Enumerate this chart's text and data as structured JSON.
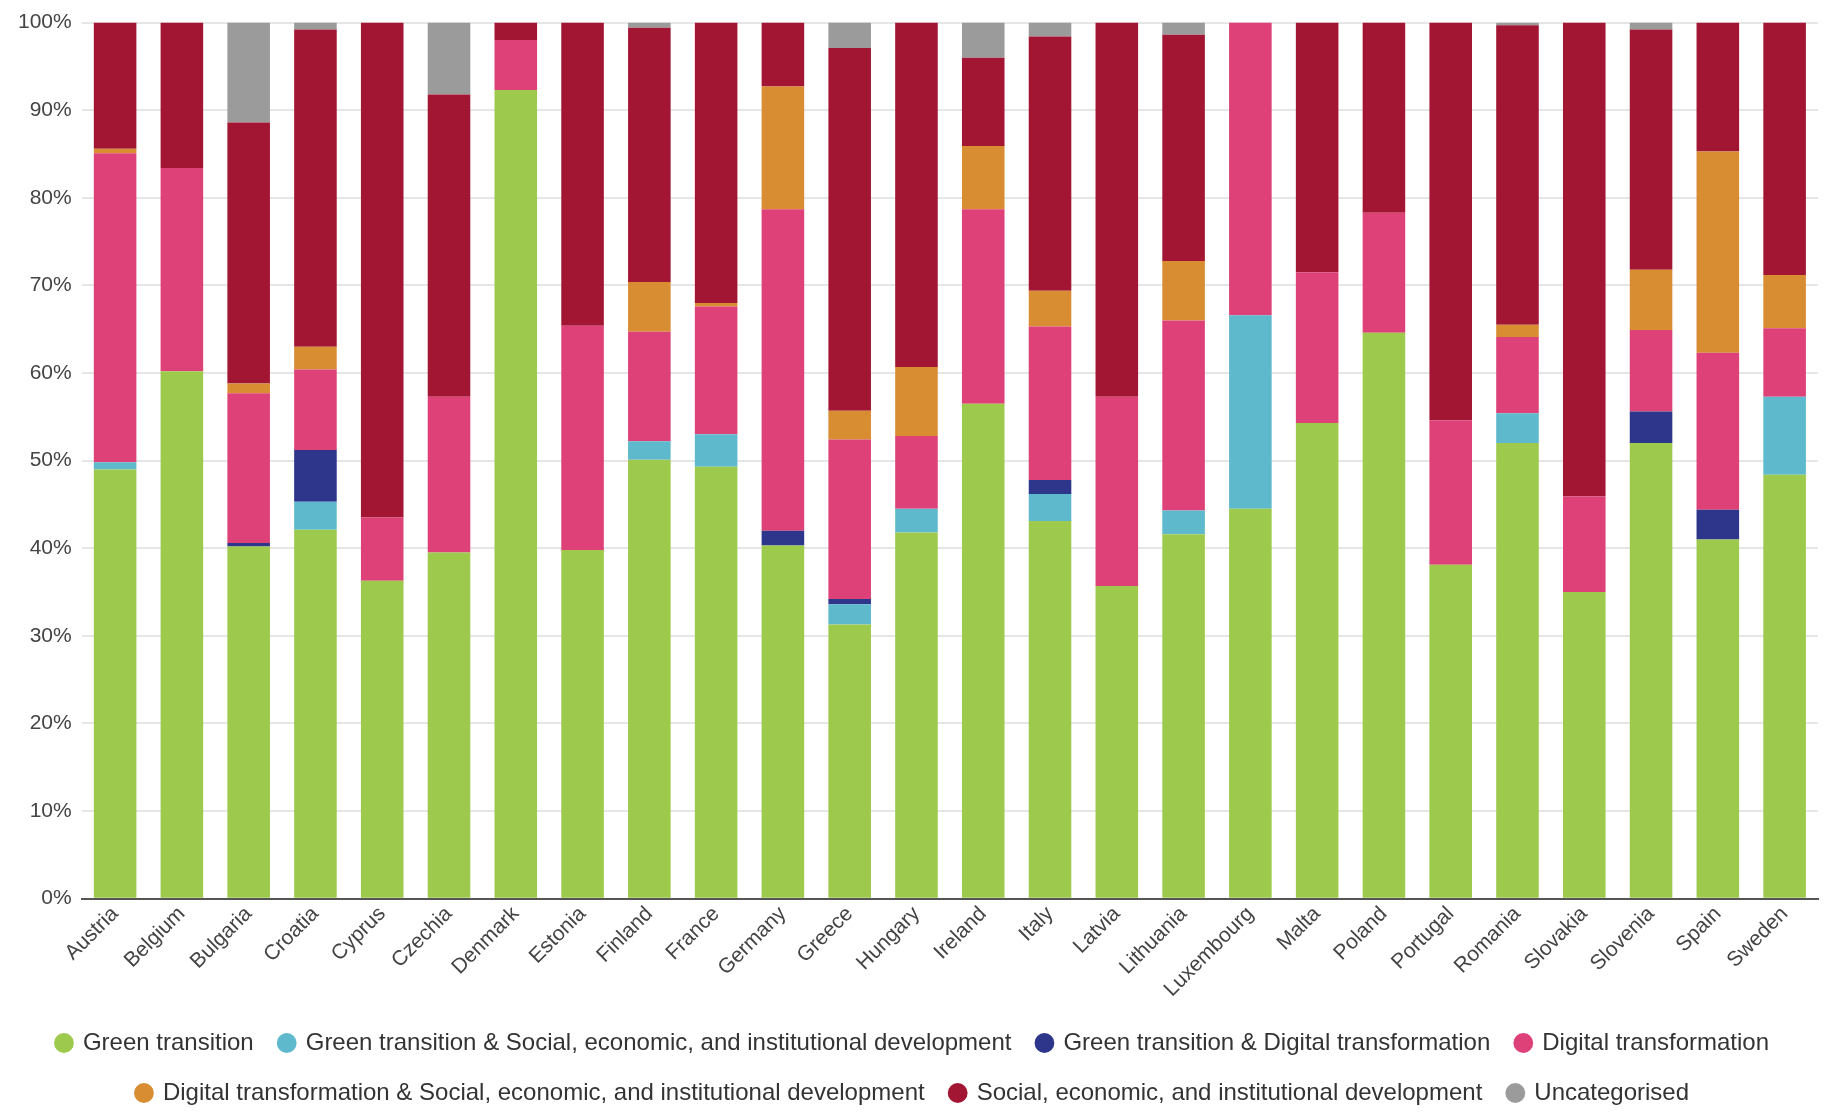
{
  "chart_data": {
    "type": "bar",
    "stacked": true,
    "grid": "y",
    "legend": "bottom",
    "categories": [
      "Austria",
      "Belgium",
      "Bulgaria",
      "Croatia",
      "Cyprus",
      "Czechia",
      "Denmark",
      "Estonia",
      "Finland",
      "France",
      "Germany",
      "Greece",
      "Hungary",
      "Ireland",
      "Italy",
      "Latvia",
      "Lithuania",
      "Luxembourg",
      "Malta",
      "Poland",
      "Portugal",
      "Romania",
      "Slovakia",
      "Slovenia",
      "Spain",
      "Sweden"
    ],
    "ylim": [
      0,
      100
    ],
    "yticks": [
      {
        "value": 0,
        "label": "0%"
      },
      {
        "value": 10,
        "label": "10%"
      },
      {
        "value": 20,
        "label": "20%"
      },
      {
        "value": 30,
        "label": "30%"
      },
      {
        "value": 40,
        "label": "40%"
      },
      {
        "value": 50,
        "label": "50%"
      },
      {
        "value": 60,
        "label": "60%"
      },
      {
        "value": 70,
        "label": "70%"
      },
      {
        "value": 80,
        "label": "80%"
      },
      {
        "value": 90,
        "label": "90%"
      },
      {
        "value": 100,
        "label": "100%"
      }
    ],
    "series": [
      {
        "name": "Green transition",
        "color": "#9dc94c",
        "values": [
          49,
          60.2,
          40.2,
          42.1,
          36.3,
          39.5,
          92.3,
          39.8,
          50.1,
          49.3,
          40.3,
          31.3,
          41.8,
          56.5,
          43.1,
          35.7,
          41.6,
          44.5,
          54.3,
          64.6,
          38.1,
          52,
          35,
          52,
          41,
          48.4
        ]
      },
      {
        "name": "Green transition & Social, economic, and institutional development",
        "color": "#5fb9cd",
        "values": [
          0.8,
          0,
          0,
          3.2,
          0,
          0,
          0,
          0,
          2.1,
          3.7,
          0,
          2.3,
          2.7,
          0,
          3.1,
          0,
          2.7,
          22.1,
          0,
          0,
          0,
          3.4,
          0,
          0,
          0,
          8.9
        ]
      },
      {
        "name": "Green transition & Digital transformation",
        "color": "#2e368c",
        "values": [
          0,
          0,
          0.4,
          5.9,
          0,
          0,
          0,
          0,
          0,
          0,
          1.7,
          0.6,
          0,
          0,
          1.6,
          0,
          0,
          0,
          0,
          0,
          0,
          0,
          0,
          3.6,
          3.4,
          0
        ]
      },
      {
        "name": "Digital transformation",
        "color": "#de4177",
        "values": [
          35.3,
          23.2,
          17.1,
          9.2,
          7.2,
          17.8,
          5.7,
          25.6,
          12.5,
          14.6,
          36.7,
          18.2,
          8.3,
          22.2,
          17.5,
          21.6,
          21.7,
          33.4,
          17.2,
          13.7,
          16.5,
          8.7,
          10.9,
          9.3,
          17.9,
          7.8
        ]
      },
      {
        "name": "Digital transformation & Social, economic, and institutional development",
        "color": "#d88d33",
        "values": [
          0.5,
          0,
          1.1,
          2.6,
          0,
          0,
          0,
          0,
          5.7,
          0.4,
          14,
          3.3,
          7.9,
          7.2,
          4.1,
          0,
          6.8,
          0,
          0,
          0,
          0,
          1.4,
          0,
          6.9,
          23,
          6.1
        ]
      },
      {
        "name": "Social, economic, and institutional development",
        "color": "#a21634",
        "values": [
          14.4,
          16.6,
          29.8,
          36.2,
          56.5,
          34.5,
          2,
          34.6,
          29,
          32,
          7.3,
          41.4,
          39.3,
          10.1,
          29,
          42.7,
          25.8,
          0,
          28.5,
          21.7,
          45.4,
          34.2,
          54.1,
          27.4,
          14.7,
          28.8
        ]
      },
      {
        "name": "Uncategorised",
        "color": "#9b9b9b",
        "values": [
          0,
          0,
          11.4,
          0.8,
          0,
          8.2,
          0,
          0,
          0.6,
          0,
          0,
          2.9,
          0,
          4,
          1.6,
          0,
          1.4,
          0,
          0,
          0,
          0,
          0.3,
          0,
          0.8,
          0,
          0
        ]
      }
    ]
  }
}
